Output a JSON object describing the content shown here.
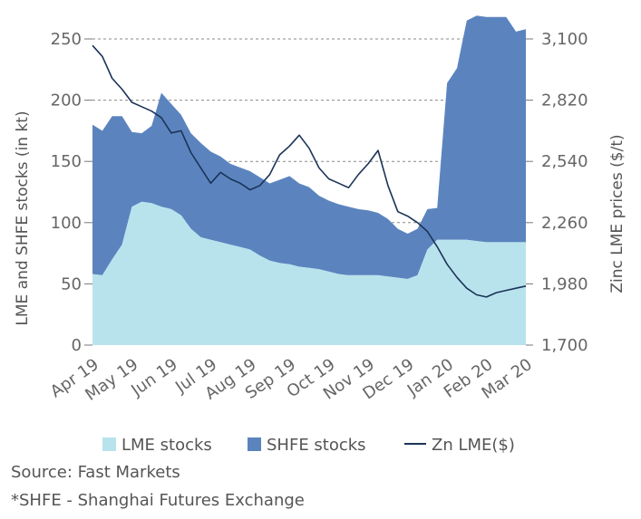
{
  "chart_data": {
    "type": "area",
    "title": "",
    "x_tick_labels": [
      "Apr 19",
      "May 19",
      "Jun 19",
      "Jul 19",
      "Aug 19",
      "Sep 19",
      "Oct 19",
      "Nov 19",
      "Dec 19",
      "Jan 20",
      "Feb 20",
      "Mar 20"
    ],
    "ylabel_left": "LME and SHFE stocks (in kt)",
    "ylabel_right": "Zinc LME prices ($/t)",
    "ylim_left": [
      0,
      250
    ],
    "yticks_left": [
      0,
      50,
      100,
      150,
      200,
      250
    ],
    "yticks_right": [
      "1,700",
      "1,980",
      "2,260",
      "2,540",
      "2,820",
      "3,100"
    ],
    "ylim_right": [
      1700,
      3100
    ],
    "grid": "dashed horizontal at left-axis ticks",
    "legend_position": "bottom",
    "x": [
      0,
      0.25,
      0.5,
      0.75,
      1,
      1.25,
      1.5,
      1.75,
      2,
      2.25,
      2.5,
      2.75,
      3,
      3.25,
      3.5,
      3.75,
      4,
      4.25,
      4.5,
      4.75,
      5,
      5.25,
      5.5,
      5.75,
      6,
      6.25,
      6.5,
      6.75,
      7,
      7.25,
      7.5,
      7.75,
      8,
      8.25,
      8.5,
      8.75,
      9,
      9.25,
      9.5,
      9.75,
      10,
      10.25,
      10.5,
      10.75,
      11
    ],
    "series": [
      {
        "name": "LME stocks",
        "kind": "area",
        "axis": "left",
        "color": "#b8e3ec",
        "values": [
          58,
          57,
          70,
          82,
          113,
          117,
          116,
          113,
          111,
          106,
          95,
          88,
          86,
          84,
          82,
          80,
          78,
          73,
          69,
          67,
          66,
          64,
          63,
          62,
          60,
          58,
          57,
          57,
          57,
          57,
          56,
          55,
          54,
          57,
          78,
          86,
          86,
          86,
          86,
          85,
          84,
          84,
          84,
          84,
          84
        ]
      },
      {
        "name": "SHFE stocks",
        "kind": "stacked-area",
        "axis": "left",
        "color": "#5b84bf",
        "values": [
          122,
          118,
          117,
          105,
          61,
          56,
          63,
          93,
          86,
          82,
          78,
          77,
          72,
          70,
          66,
          65,
          64,
          64,
          63,
          68,
          72,
          68,
          66,
          60,
          58,
          57,
          56,
          54,
          53,
          51,
          47,
          40,
          37,
          38,
          33,
          26,
          128,
          140,
          179,
          184,
          184,
          184,
          184,
          172,
          174
        ]
      },
      {
        "name": "Zn LME($)",
        "kind": "line",
        "axis": "right",
        "color": "#1b3357",
        "values": [
          3070,
          3020,
          2920,
          2870,
          2810,
          2790,
          2770,
          2740,
          2670,
          2680,
          2580,
          2510,
          2440,
          2490,
          2460,
          2440,
          2410,
          2430,
          2480,
          2570,
          2610,
          2660,
          2600,
          2510,
          2460,
          2440,
          2420,
          2480,
          2530,
          2590,
          2430,
          2310,
          2290,
          2260,
          2220,
          2150,
          2070,
          2010,
          1960,
          1930,
          1920,
          1940,
          1950,
          1960,
          1970
        ]
      }
    ]
  },
  "legend": [
    {
      "label": "LME stocks",
      "kind": "swatch",
      "color": "#b8e3ec"
    },
    {
      "label": "SHFE stocks",
      "kind": "swatch",
      "color": "#5b84bf"
    },
    {
      "label": "Zn LME($)",
      "kind": "line",
      "color": "#1b3357"
    }
  ],
  "notes": {
    "source": "Source: Fast Markets",
    "footnote": "*SHFE - Shanghai Futures Exchange"
  }
}
